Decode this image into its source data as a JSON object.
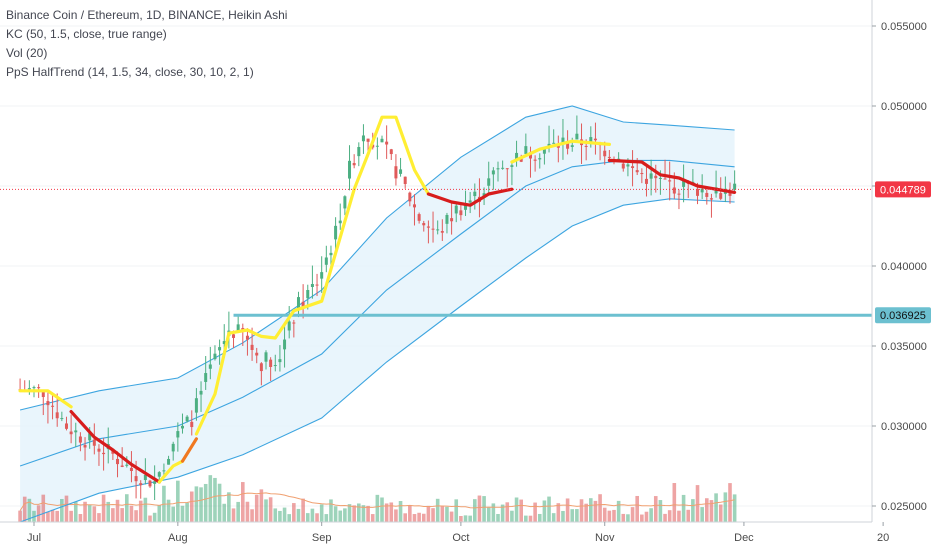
{
  "legend": {
    "title": "Binance Coin / Ethereum, 1D, BINANCE, Heikin Ashi",
    "kc": "KC (50, 1.5, close, true range)",
    "vol": "Vol (20)",
    "halftrend": "PpS HalfTrend  (14, 1.5, 34, close, 30, 10, 2, 1)"
  },
  "colors": {
    "up_candle": "#4caf82",
    "down_candle": "#e05a5a",
    "kc_band": "#3da5e0",
    "kc_fill": "#e3f3fb",
    "halftrend_up": "#ffee33",
    "halftrend_down": "#d71c1c",
    "halftrend_transition": "#f07820",
    "vol_ma": "#f0a070",
    "support_line": "#6cc0d0",
    "last_price": "#f23645"
  },
  "chart_data": {
    "type": "candlestick",
    "y_axis": {
      "ticks": [
        "0.055000",
        "0.050000",
        "0.045000",
        "0.040000",
        "0.035000",
        "0.030000",
        "0.025000"
      ],
      "range": [
        0.0235,
        0.0565
      ]
    },
    "x_axis": {
      "ticks": [
        "Jul",
        "Aug",
        "Sep",
        "Oct",
        "Nov",
        "Dec",
        "20"
      ]
    },
    "last_price": {
      "label": "0.044789",
      "value": 0.044789
    },
    "support_line": {
      "label": "0.036925",
      "value": 0.036925
    },
    "close_path": [
      [
        "06-28",
        0.0323
      ],
      [
        "07-03",
        0.0322
      ],
      [
        "07-08",
        0.03
      ],
      [
        "07-13",
        0.029
      ],
      [
        "07-18",
        0.0282
      ],
      [
        "07-23",
        0.027
      ],
      [
        "07-27",
        0.0265
      ],
      [
        "07-31",
        0.029
      ],
      [
        "08-04",
        0.0305
      ],
      [
        "08-08",
        0.0335
      ],
      [
        "08-12",
        0.036
      ],
      [
        "08-15",
        0.0357
      ],
      [
        "08-19",
        0.034
      ],
      [
        "08-23",
        0.0345
      ],
      [
        "08-27",
        0.0375
      ],
      [
        "08-31",
        0.039
      ],
      [
        "09-04",
        0.042
      ],
      [
        "09-07",
        0.046
      ],
      [
        "09-10",
        0.0485
      ],
      [
        "09-14",
        0.0475
      ],
      [
        "09-18",
        0.0455
      ],
      [
        "09-22",
        0.043
      ],
      [
        "09-26",
        0.042
      ],
      [
        "09-30",
        0.0435
      ],
      [
        "10-05",
        0.0445
      ],
      [
        "10-09",
        0.046
      ],
      [
        "10-14",
        0.047
      ],
      [
        "10-18",
        0.0472
      ],
      [
        "10-23",
        0.0477
      ],
      [
        "10-28",
        0.0478
      ],
      [
        "11-02",
        0.0472
      ],
      [
        "11-07",
        0.046
      ],
      [
        "11-12",
        0.0453
      ],
      [
        "11-17",
        0.045
      ],
      [
        "11-22",
        0.0448
      ],
      [
        "11-26",
        0.0447
      ],
      [
        "11-29",
        0.04479
      ]
    ],
    "kc_upper": [
      [
        "06-28",
        0.031
      ],
      [
        "07-15",
        0.0322
      ],
      [
        "08-01",
        0.033
      ],
      [
        "08-15",
        0.0352
      ],
      [
        "09-01",
        0.0385
      ],
      [
        "09-15",
        0.043
      ],
      [
        "10-01",
        0.0468
      ],
      [
        "10-15",
        0.0493
      ],
      [
        "10-25",
        0.05
      ],
      [
        "11-05",
        0.049
      ],
      [
        "11-15",
        0.0488
      ],
      [
        "11-29",
        0.0485
      ]
    ],
    "kc_middle": [
      [
        "06-28",
        0.0275
      ],
      [
        "07-15",
        0.0292
      ],
      [
        "08-01",
        0.03
      ],
      [
        "08-15",
        0.0318
      ],
      [
        "09-01",
        0.0345
      ],
      [
        "09-15",
        0.0385
      ],
      [
        "10-01",
        0.042
      ],
      [
        "10-15",
        0.045
      ],
      [
        "10-25",
        0.0462
      ],
      [
        "11-05",
        0.0466
      ],
      [
        "11-15",
        0.0466
      ],
      [
        "11-29",
        0.0462
      ]
    ],
    "kc_lower": [
      [
        "06-28",
        0.024
      ],
      [
        "07-15",
        0.0258
      ],
      [
        "08-01",
        0.0268
      ],
      [
        "08-15",
        0.0282
      ],
      [
        "09-01",
        0.0305
      ],
      [
        "09-15",
        0.034
      ],
      [
        "10-01",
        0.0375
      ],
      [
        "10-15",
        0.0405
      ],
      [
        "10-25",
        0.0425
      ],
      [
        "11-05",
        0.0438
      ],
      [
        "11-15",
        0.0442
      ],
      [
        "11-29",
        0.044
      ]
    ],
    "halftrend": [
      {
        "trend": "up",
        "points": [
          [
            "06-28",
            0.0322
          ],
          [
            "07-04",
            0.0322
          ],
          [
            "07-09",
            0.0312
          ]
        ]
      },
      {
        "trend": "down",
        "points": [
          [
            "07-09",
            0.0309
          ],
          [
            "07-14",
            0.0293
          ],
          [
            "07-18",
            0.0285
          ],
          [
            "07-22",
            0.0276
          ],
          [
            "07-28",
            0.0265
          ]
        ]
      },
      {
        "trend": "up",
        "points": [
          [
            "07-28",
            0.0265
          ],
          [
            "07-31",
            0.0275
          ],
          [
            "08-02",
            0.0278
          ]
        ]
      },
      {
        "trend": "transition",
        "points": [
          [
            "08-02",
            0.0278
          ],
          [
            "08-05",
            0.0292
          ]
        ]
      },
      {
        "trend": "up",
        "points": [
          [
            "08-05",
            0.0295
          ],
          [
            "08-09",
            0.032
          ],
          [
            "08-12",
            0.0358
          ],
          [
            "08-16",
            0.036
          ],
          [
            "08-19",
            0.0356
          ],
          [
            "08-22",
            0.0355
          ],
          [
            "08-26",
            0.0372
          ],
          [
            "09-01",
            0.0378
          ],
          [
            "09-04",
            0.0408
          ],
          [
            "09-08",
            0.0448
          ],
          [
            "09-11",
            0.047
          ],
          [
            "09-14",
            0.0493
          ],
          [
            "09-17",
            0.0493
          ],
          [
            "09-21",
            0.046
          ],
          [
            "09-24",
            0.0445
          ]
        ]
      },
      {
        "trend": "down",
        "points": [
          [
            "09-24",
            0.0445
          ],
          [
            "09-29",
            0.044
          ],
          [
            "10-03",
            0.0438
          ],
          [
            "10-07",
            0.0445
          ],
          [
            "10-12",
            0.0448
          ]
        ]
      },
      {
        "trend": "up",
        "points": [
          [
            "10-12",
            0.0465
          ],
          [
            "10-18",
            0.0473
          ],
          [
            "10-25",
            0.0478
          ],
          [
            "11-02",
            0.0476
          ]
        ]
      },
      {
        "trend": "down",
        "points": [
          [
            "11-02",
            0.0466
          ],
          [
            "11-09",
            0.0465
          ],
          [
            "11-13",
            0.0457
          ],
          [
            "11-17",
            0.0455
          ],
          [
            "11-21",
            0.045
          ],
          [
            "11-25",
            0.0448
          ],
          [
            "11-29",
            0.0446
          ]
        ]
      }
    ]
  }
}
